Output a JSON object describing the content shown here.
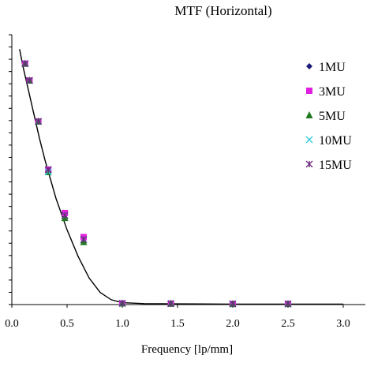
{
  "chart_data": {
    "type": "scatter",
    "title": "MTF (Horizontal)",
    "xlabel": "Frequency [lp/mm]",
    "ylabel": "",
    "xlim": [
      0,
      3.2
    ],
    "ylim": [
      0,
      1.12
    ],
    "xticks": [
      "0.0",
      "0.5",
      "1.0",
      "1.5",
      "2.0",
      "2.5",
      "3.0"
    ],
    "xtick_values": [
      0,
      0.5,
      1.0,
      1.5,
      2.0,
      2.5,
      3.0
    ],
    "y_minor_tick_count": 22,
    "grid": false,
    "legend_position": "right",
    "series": [
      {
        "name": "1MU",
        "marker": "diamond",
        "color": "#1a1a7a",
        "x": [
          0.12,
          0.16,
          0.24,
          0.33,
          0.48,
          0.65,
          1.0,
          1.44,
          2.0,
          2.5
        ],
        "y": [
          1.0,
          0.93,
          0.76,
          0.56,
          0.37,
          0.27,
          0.005,
          0.004,
          0.003,
          0.003
        ]
      },
      {
        "name": "3MU",
        "marker": "square",
        "color": "#e020e0",
        "x": [
          0.12,
          0.16,
          0.24,
          0.33,
          0.48,
          0.65,
          1.0,
          1.44,
          2.0,
          2.5
        ],
        "y": [
          1.0,
          0.93,
          0.76,
          0.56,
          0.38,
          0.28,
          0.005,
          0.004,
          0.003,
          0.003
        ]
      },
      {
        "name": "5MU",
        "marker": "triangle",
        "color": "#1f7a1f",
        "x": [
          0.12,
          0.16,
          0.24,
          0.33,
          0.48,
          0.65,
          1.0,
          1.44,
          2.0,
          2.5
        ],
        "y": [
          1.0,
          0.93,
          0.76,
          0.55,
          0.36,
          0.26,
          0.005,
          0.004,
          0.003,
          0.003
        ]
      },
      {
        "name": "10MU",
        "marker": "x",
        "color": "#33ccdd",
        "x": [
          0.12,
          0.16,
          0.24,
          0.33,
          0.48,
          0.65,
          1.0,
          1.44,
          2.0,
          2.5
        ],
        "y": [
          1.0,
          0.93,
          0.76,
          0.55,
          0.37,
          0.27,
          0.005,
          0.004,
          0.003,
          0.003
        ]
      },
      {
        "name": "15MU",
        "marker": "star",
        "color": "#6a2a7a",
        "x": [
          0.12,
          0.16,
          0.24,
          0.33,
          0.48,
          0.65,
          1.0,
          1.44,
          2.0,
          2.5
        ],
        "y": [
          1.0,
          0.93,
          0.76,
          0.56,
          0.37,
          0.27,
          0.005,
          0.004,
          0.003,
          0.003
        ]
      }
    ],
    "fit_curve": {
      "color": "#000000",
      "x": [
        0.07,
        0.1,
        0.15,
        0.2,
        0.25,
        0.3,
        0.35,
        0.4,
        0.5,
        0.6,
        0.7,
        0.8,
        0.9,
        1.0,
        1.2,
        1.5,
        2.0,
        2.5,
        3.0
      ],
      "y": [
        1.06,
        0.99,
        0.89,
        0.79,
        0.69,
        0.6,
        0.52,
        0.44,
        0.31,
        0.2,
        0.11,
        0.05,
        0.02,
        0.008,
        0.004,
        0.003,
        0.002,
        0.002,
        0.002
      ]
    }
  }
}
